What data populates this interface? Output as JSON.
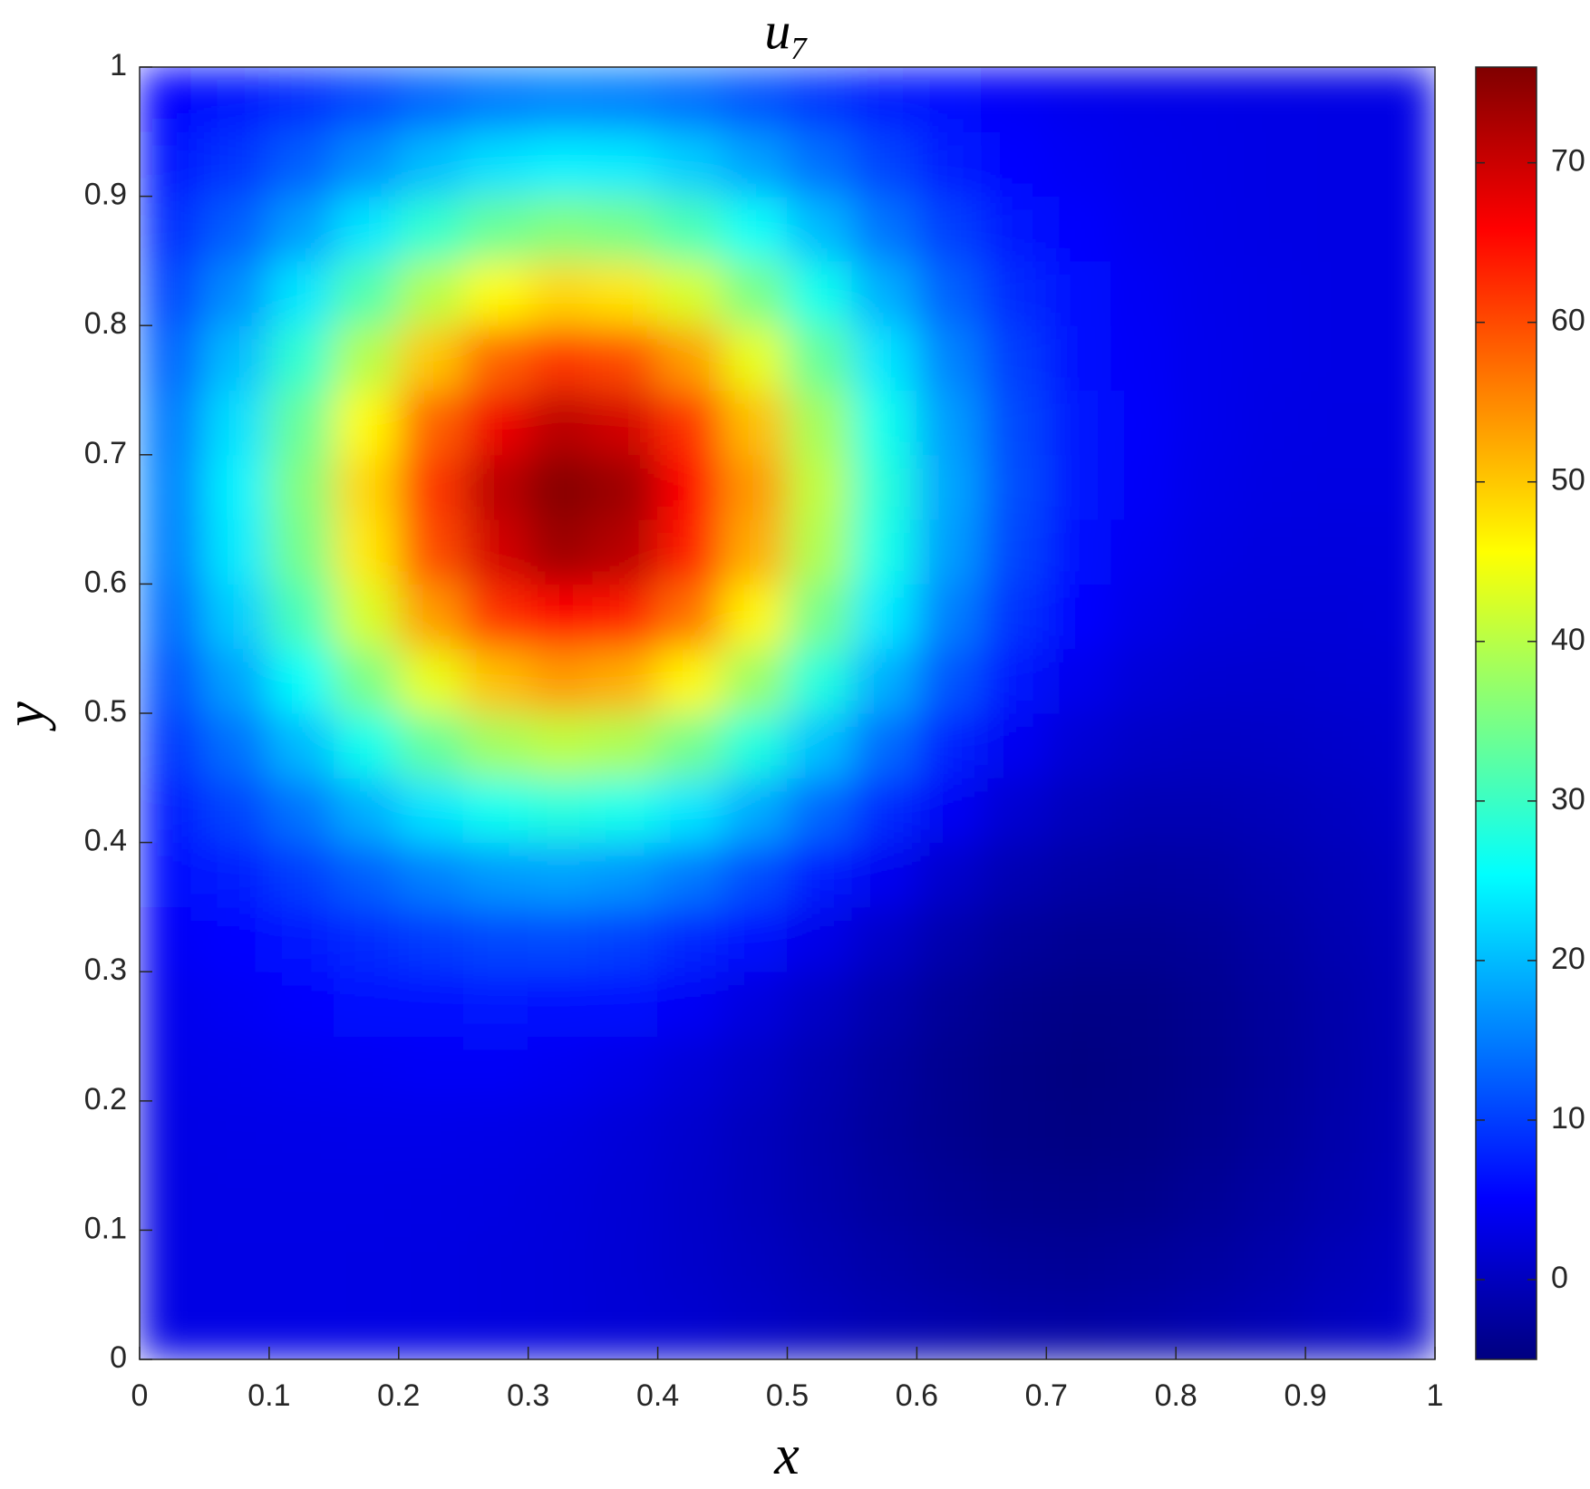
{
  "chart_data": {
    "type": "heatmap",
    "title": "u₇",
    "xlabel": "x",
    "ylabel": "y",
    "colormap": "jet",
    "clim": [
      -5,
      76
    ],
    "cticks": [
      0,
      10,
      20,
      30,
      40,
      50,
      60,
      70
    ],
    "xlim": [
      0,
      1
    ],
    "ylim": [
      0,
      1
    ],
    "xticks": [
      0,
      0.1,
      0.2,
      0.3,
      0.4,
      0.5,
      0.6,
      0.7,
      0.8,
      0.9,
      1
    ],
    "yticks": [
      0,
      0.1,
      0.2,
      0.3,
      0.4,
      0.5,
      0.6,
      0.7,
      0.8,
      0.9,
      1
    ],
    "x": [
      0.025,
      0.075,
      0.125,
      0.175,
      0.225,
      0.275,
      0.325,
      0.375,
      0.425,
      0.475,
      0.525,
      0.575,
      0.625,
      0.675,
      0.725,
      0.775,
      0.825,
      0.875,
      0.925,
      0.975
    ],
    "y": [
      0.025,
      0.075,
      0.125,
      0.175,
      0.225,
      0.275,
      0.325,
      0.375,
      0.425,
      0.475,
      0.525,
      0.575,
      0.625,
      0.675,
      0.725,
      0.775,
      0.825,
      0.875,
      0.925,
      0.975
    ],
    "z": [
      [
        3.0,
        3.0,
        3.0,
        2.9,
        2.8,
        2.6,
        2.3,
        1.9,
        1.4,
        0.7,
        -0.1,
        -0.8,
        -1.4,
        -1.9,
        -2.0,
        -1.8,
        -1.3,
        -0.7,
        0.1,
        0.8
      ],
      [
        3.0,
        3.0,
        3.0,
        2.9,
        2.8,
        2.6,
        2.3,
        1.7,
        1.0,
        0.2,
        -0.8,
        -1.7,
        -2.5,
        -3.0,
        -3.2,
        -2.9,
        -2.4,
        -1.6,
        -0.6,
        0.3
      ],
      [
        3.0,
        3.1,
        3.1,
        3.1,
        3.0,
        2.8,
        2.4,
        1.8,
        0.9,
        -0.1,
        -1.3,
        -2.4,
        -3.3,
        -3.9,
        -4.1,
        -3.9,
        -3.2,
        -2.3,
        -1.2,
        -0.2
      ],
      [
        3.1,
        3.2,
        3.3,
        3.4,
        3.4,
        3.2,
        2.8,
        2.1,
        1.2,
        0,
        -1.4,
        -2.7,
        -3.8,
        -4.5,
        -4.7,
        -4.5,
        -3.8,
        -2.8,
        -1.6,
        -0.5
      ],
      [
        3.4,
        3.6,
        3.9,
        4.2,
        4.4,
        4.4,
        4.0,
        3.3,
        2.2,
        0.8,
        -0.8,
        -2.4,
        -3.7,
        -4.5,
        -4.9,
        -4.6,
        -3.9,
        -2.9,
        -1.7,
        -0.6
      ],
      [
        3.8,
        4.3,
        5.0,
        5.7,
        6.3,
        6.7,
        6.5,
        5.7,
        4.4,
        2.6,
        0.6,
        -1.3,
        -2.9,
        -3.9,
        -4.4,
        -4.3,
        -3.7,
        -2.7,
        -1.6,
        -0.4
      ],
      [
        4.5,
        5.6,
        6.9,
        8.4,
        9.8,
        10.8,
        10.9,
        10.1,
        8.3,
        5.9,
        3.3,
        0.8,
        -1.3,
        -2.7,
        -3.4,
        -3.4,
        -3.0,
        -2.1,
        -1.1,
        -0.1
      ],
      [
        5.7,
        7.6,
        10.0,
        12.8,
        15.4,
        17.3,
        17.9,
        17.0,
        14.7,
        11.3,
        7.5,
        4.0,
        1.1,
        -0.9,
        -1.9,
        -2.2,
        -2.0,
        -1.3,
        -0.5,
        0.4
      ],
      [
        7.4,
        10.5,
        14.4,
        19.0,
        23.3,
        26.6,
        27.9,
        26.8,
        23.5,
        18.7,
        13.3,
        8.4,
        4.3,
        1.5,
        -0.1,
        -0.8,
        -0.8,
        -0.4,
        0.2,
        0.9
      ],
      [
        9.6,
        14.1,
        19.9,
        26.7,
        33.2,
        38.2,
        40.3,
        39.0,
        34.5,
        27.8,
        20.4,
        13.6,
        8.0,
        4.1,
        1.8,
        0.7,
        0.4,
        0.6,
        1.0,
        1.4
      ],
      [
        11.9,
        18.0,
        25.8,
        35.0,
        43.9,
        50.6,
        53.6,
        52.0,
        46.2,
        37.6,
        27.9,
        19.0,
        11.9,
        6.8,
        3.7,
        2.1,
        1.5,
        1.4,
        1.6,
        1.9
      ],
      [
        13.9,
        21.5,
        31.2,
        42.5,
        53.5,
        61.9,
        65.6,
        63.8,
        56.8,
        46.3,
        34.6,
        23.8,
        15.2,
        9.1,
        5.3,
        3.3,
        2.4,
        2.1,
        2.1,
        2.3
      ],
      [
        15.3,
        23.8,
        34.7,
        47.4,
        59.8,
        69.3,
        73.5,
        71.6,
        63.8,
        52.1,
        39.1,
        27.1,
        17.5,
        10.6,
        6.4,
        4.1,
        3.0,
        2.6,
        2.5,
        2.6
      ],
      [
        15.6,
        24.4,
        35.6,
        48.7,
        61.4,
        71.2,
        75.5,
        73.6,
        65.6,
        53.7,
        40.4,
        28.1,
        18.3,
        11.3,
        7.0,
        4.6,
        3.4,
        2.9,
        2.8,
        2.8
      ],
      [
        14.9,
        23.0,
        33.6,
        45.9,
        57.9,
        67.0,
        71.2,
        69.3,
        61.9,
        50.7,
        38.3,
        26.7,
        17.5,
        11.0,
        7.0,
        4.7,
        3.6,
        3.1,
        2.9,
        2.9
      ],
      [
        13.2,
        20.2,
        29.2,
        39.8,
        50.0,
        57.9,
        61.4,
        59.9,
        53.5,
        43.9,
        33.3,
        23.4,
        15.6,
        10.0,
        6.5,
        4.6,
        3.6,
        3.2,
        3.0,
        3.0
      ],
      [
        11.0,
        16.4,
        23.5,
        31.8,
        39.8,
        45.9,
        48.7,
        47.5,
        42.5,
        35.0,
        26.7,
        19.0,
        12.9,
        8.5,
        5.8,
        4.3,
        3.5,
        3.2,
        3.0,
        3.0
      ],
      [
        8.7,
        12.6,
        17.6,
        23.5,
        29.2,
        33.6,
        35.6,
        34.7,
        31.2,
        25.9,
        19.9,
        14.4,
        10.1,
        7.0,
        5.0,
        3.9,
        3.4,
        3.1,
        3.0,
        3.0
      ],
      [
        6.7,
        9.3,
        12.6,
        16.4,
        20.2,
        23.0,
        24.3,
        23.8,
        21.4,
        18.0,
        14.1,
        10.5,
        7.6,
        5.6,
        4.3,
        3.6,
        3.3,
        3.1,
        3.0,
        3.0
      ],
      [
        5.2,
        6.7,
        8.7,
        11.0,
        13.2,
        14.9,
        15.7,
        15.3,
        14.0,
        11.9,
        9.6,
        7.5,
        5.8,
        4.5,
        3.8,
        3.4,
        3.2,
        3.1,
        3.0,
        3.0
      ]
    ]
  }
}
